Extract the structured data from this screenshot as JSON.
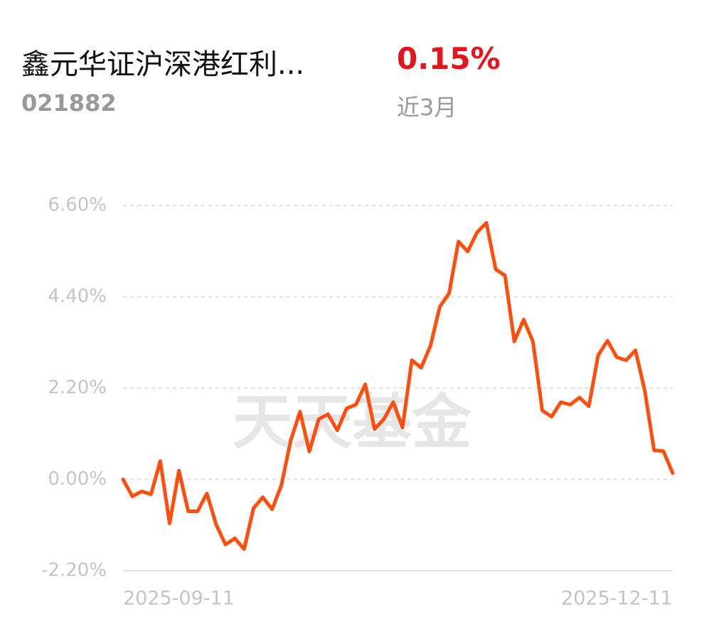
{
  "header": {
    "fund_name": "鑫元华证沪深港红利...",
    "fund_code": "021882",
    "return": "0.15%",
    "period": "近3月"
  },
  "watermark": "天天基金",
  "chart_data": {
    "type": "line",
    "categories": [
      "2025-09-11",
      null,
      null,
      null,
      null,
      null,
      null,
      null,
      null,
      null,
      null,
      null,
      null,
      null,
      null,
      null,
      null,
      null,
      null,
      null,
      null,
      null,
      null,
      null,
      null,
      null,
      null,
      null,
      null,
      null,
      null,
      null,
      null,
      null,
      null,
      null,
      null,
      null,
      null,
      null,
      null,
      null,
      null,
      null,
      null,
      null,
      null,
      null,
      null,
      null,
      null,
      null,
      null,
      null,
      null,
      null,
      null,
      null,
      null,
      "2025-12-11"
    ],
    "series": [
      {
        "color": "#ff4d0d",
        "values": [
          0,
          -0.41,
          -0.29,
          -0.36,
          0.44,
          -1.06,
          0.21,
          -0.77,
          -0.77,
          -0.34,
          -1.09,
          -1.57,
          -1.42,
          -1.68,
          -0.7,
          -0.43,
          -0.72,
          -0.14,
          0.94,
          1.63,
          0.67,
          1.45,
          1.57,
          1.18,
          1.71,
          1.8,
          2.29,
          1.21,
          1.45,
          1.86,
          1.25,
          2.87,
          2.69,
          3.22,
          4.16,
          4.48,
          5.73,
          5.49,
          5.95,
          6.18,
          5.06,
          4.91,
          3.32,
          3.85,
          3.32,
          1.66,
          1.51,
          1.86,
          1.8,
          1.97,
          1.76,
          2.99,
          3.34,
          2.94,
          2.87,
          3.11,
          2.14,
          0.7,
          0.68,
          0.15
        ]
      }
    ],
    "ylim": [
      -2.2,
      6.6
    ],
    "yticks": [
      {
        "value": 6.6,
        "label": "6.60%"
      },
      {
        "value": 4.4,
        "label": "4.40%"
      },
      {
        "value": 2.2,
        "label": "2.20%"
      },
      {
        "value": 0,
        "label": "0.00%"
      },
      {
        "value": -2.2,
        "label": "-2.20%"
      }
    ],
    "grid": true
  }
}
